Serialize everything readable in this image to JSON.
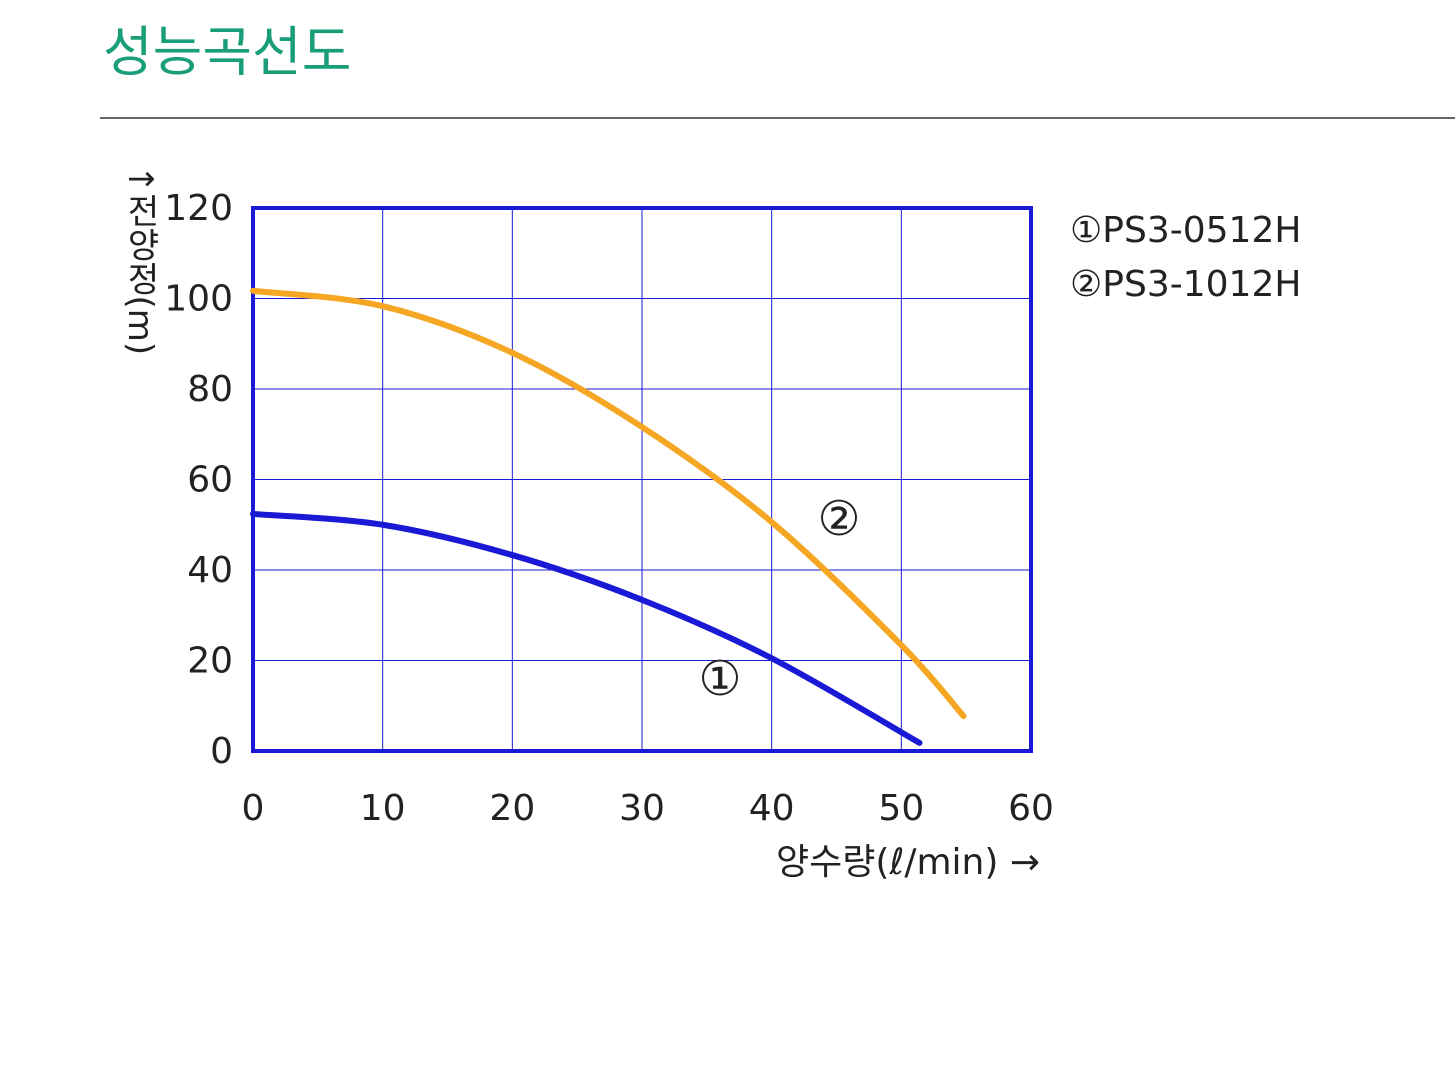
{
  "chart_data": {
    "type": "line",
    "title": "성능곡선도",
    "y_label": "↑전양정(m)",
    "x_label": "양수량(ℓ/min) →",
    "series": [
      {
        "name": "①PS3-0512H",
        "color": "#1a1ad6",
        "x": [
          0,
          10,
          20,
          30,
          40,
          51.4
        ],
        "values": [
          52.4,
          50,
          43.3,
          33.4,
          20.5,
          1.8
        ]
      },
      {
        "name": "②PS3-1012H",
        "color": "#f5a623",
        "x": [
          0,
          10,
          20,
          30,
          40,
          50,
          54.8
        ],
        "values": [
          101.7,
          98.3,
          88,
          71.6,
          50.6,
          23.4,
          7.7
        ]
      }
    ],
    "annotations": [
      "①",
      "②"
    ],
    "xlim": [
      0,
      60
    ],
    "xticks": [
      0,
      10,
      20,
      30,
      40,
      50,
      60
    ],
    "ylim": [
      0,
      120
    ],
    "yticks": [
      0,
      20,
      40,
      60,
      80,
      100,
      120
    ],
    "grid": true,
    "frame_color": "#1a1ad6",
    "grid_color": "#1a1ad6",
    "title_color": "#1a9e7a"
  }
}
